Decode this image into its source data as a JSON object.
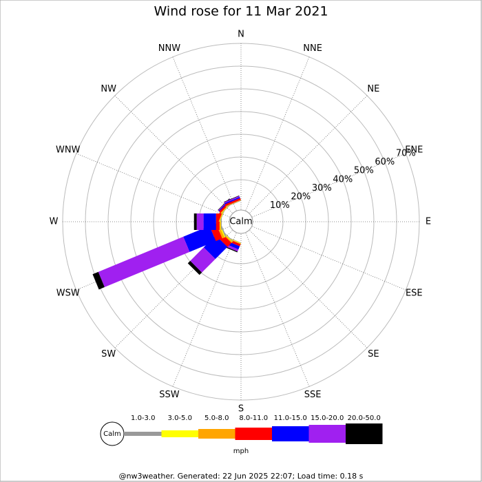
{
  "chart_data": {
    "type": "windrose",
    "title": "Wind rose for 11 Mar 2021",
    "categories": [
      "N",
      "NNE",
      "NE",
      "ENE",
      "E",
      "ESE",
      "SE",
      "SSE",
      "S",
      "SSW",
      "SW",
      "WSW",
      "W",
      "WNW",
      "NW",
      "NNW"
    ],
    "calm_label": "Calm",
    "rlim": [
      0,
      70
    ],
    "rticks": [
      {
        "value": 10,
        "label": "10%"
      },
      {
        "value": 20,
        "label": "20%"
      },
      {
        "value": 30,
        "label": "30%"
      },
      {
        "value": 40,
        "label": "40%"
      },
      {
        "value": 50,
        "label": "50%"
      },
      {
        "value": 60,
        "label": "60%"
      },
      {
        "value": 70,
        "label": "70%"
      }
    ],
    "series": [
      {
        "name": "1.0-3.0",
        "color": "#999999",
        "values": [
          0,
          0,
          0,
          0,
          0,
          0,
          0,
          0,
          0,
          0.2,
          0.3,
          0.5,
          0.3,
          0.2,
          0.2,
          0.2
        ]
      },
      {
        "name": "3.0-5.0",
        "color": "#ffff00",
        "values": [
          0,
          0,
          0,
          0,
          0,
          0,
          0,
          0,
          0,
          0.2,
          0.3,
          0.5,
          0.2,
          0.2,
          0.2,
          0
        ]
      },
      {
        "name": "5.0-8.0",
        "color": "#ffa500",
        "values": [
          0,
          0,
          0,
          0,
          0,
          0,
          0,
          0,
          0,
          0.3,
          0.5,
          1,
          0.5,
          0.3,
          0.3,
          0.3
        ]
      },
      {
        "name": "8.0-11.0",
        "color": "#ff0000",
        "values": [
          0,
          0,
          0,
          0,
          0,
          0,
          0,
          0,
          0,
          1,
          2.5,
          3,
          1.5,
          1,
          0.8,
          0.8
        ]
      },
      {
        "name": "11.0-15.0",
        "color": "#0000ff",
        "values": [
          0,
          0,
          0,
          0,
          0,
          0,
          0,
          0,
          0,
          1.5,
          7.5,
          12.5,
          5.5,
          0,
          0.4,
          0.5
        ]
      },
      {
        "name": "15.0-20.0",
        "color": "#a020f0",
        "values": [
          0,
          0,
          0,
          0,
          0,
          0,
          0,
          0,
          0,
          1,
          8.4,
          40.5,
          3,
          0,
          0.3,
          0.5
        ]
      },
      {
        "name": "20.0-50.0",
        "color": "#000000",
        "values": [
          0,
          0,
          0,
          0,
          0,
          0,
          0,
          0,
          0,
          0.4,
          1.5,
          2.7,
          1.2,
          0,
          0.2,
          0.2
        ]
      }
    ],
    "legend_unit": "mph",
    "footer": "@nw3weather. Generated: 22 Jun 2025 22:07; Load time: 0.18 s"
  }
}
